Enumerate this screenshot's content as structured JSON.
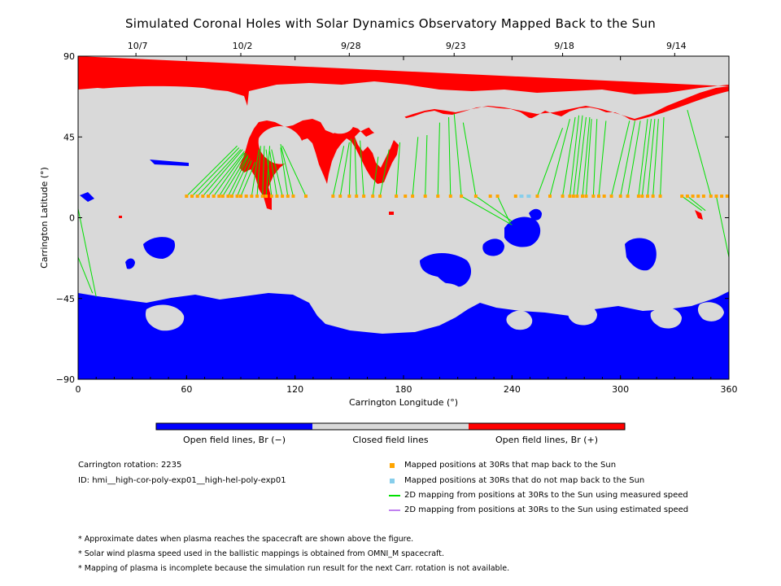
{
  "chart_data": {
    "type": "map",
    "title": "Simulated Coronal Holes with Solar Dynamics Observatory Mapped Back to the Sun",
    "xlabel": "Carrington Longitude (°)",
    "ylabel": "Carrington Latitude (°)",
    "xlim": [
      0,
      360
    ],
    "ylim": [
      -90,
      90
    ],
    "x_ticks": [
      0,
      60,
      120,
      180,
      240,
      300,
      360
    ],
    "y_ticks": [
      -90,
      -45,
      0,
      45,
      90
    ],
    "top_date_ticks": [
      {
        "label": "10/7",
        "x": 32
      },
      {
        "label": "10/2",
        "x": 90
      },
      {
        "label": "9/28",
        "x": 150
      },
      {
        "label": "9/23",
        "x": 208
      },
      {
        "label": "9/18",
        "x": 268
      },
      {
        "label": "9/14",
        "x": 330
      }
    ],
    "colorbar": [
      {
        "label": "Open field lines, Br (−)",
        "color": "#0000ff"
      },
      {
        "label": "Closed field lines",
        "color": "#d9d9d9"
      },
      {
        "label": "Open field lines, Br (+)",
        "color": "#ff0000"
      }
    ],
    "footpoints": [
      {
        "x": 60,
        "y": 12
      },
      {
        "x": 63,
        "y": 12
      },
      {
        "x": 66,
        "y": 12
      },
      {
        "x": 69,
        "y": 12
      },
      {
        "x": 72,
        "y": 12
      },
      {
        "x": 75,
        "y": 12
      },
      {
        "x": 78,
        "y": 12
      },
      {
        "x": 80,
        "y": 12
      },
      {
        "x": 83,
        "y": 12
      },
      {
        "x": 85,
        "y": 12
      },
      {
        "x": 88,
        "y": 12
      },
      {
        "x": 90,
        "y": 12
      },
      {
        "x": 93,
        "y": 12
      },
      {
        "x": 96,
        "y": 12
      },
      {
        "x": 99,
        "y": 12
      },
      {
        "x": 102,
        "y": 12
      },
      {
        "x": 104,
        "y": 12
      },
      {
        "x": 107,
        "y": 12
      },
      {
        "x": 110,
        "y": 12
      },
      {
        "x": 113,
        "y": 12
      },
      {
        "x": 116,
        "y": 12
      },
      {
        "x": 119,
        "y": 12
      },
      {
        "x": 126,
        "y": 12
      },
      {
        "x": 141,
        "y": 12
      },
      {
        "x": 145,
        "y": 12
      },
      {
        "x": 150,
        "y": 12
      },
      {
        "x": 154,
        "y": 12
      },
      {
        "x": 158,
        "y": 12
      },
      {
        "x": 163,
        "y": 12
      },
      {
        "x": 167,
        "y": 12
      },
      {
        "x": 176,
        "y": 12
      },
      {
        "x": 181,
        "y": 12
      },
      {
        "x": 185,
        "y": 12
      },
      {
        "x": 192,
        "y": 12
      },
      {
        "x": 199,
        "y": 12
      },
      {
        "x": 206,
        "y": 12
      },
      {
        "x": 212,
        "y": 12
      },
      {
        "x": 220,
        "y": 12
      },
      {
        "x": 228,
        "y": 12
      },
      {
        "x": 232,
        "y": 12
      },
      {
        "x": 242,
        "y": 12
      },
      {
        "x": 254,
        "y": 12
      },
      {
        "x": 261,
        "y": 12
      },
      {
        "x": 268,
        "y": 12
      },
      {
        "x": 272,
        "y": 12
      },
      {
        "x": 274,
        "y": 12
      },
      {
        "x": 276,
        "y": 12
      },
      {
        "x": 279,
        "y": 12
      },
      {
        "x": 281,
        "y": 12
      },
      {
        "x": 285,
        "y": 12
      },
      {
        "x": 288,
        "y": 12
      },
      {
        "x": 291,
        "y": 12
      },
      {
        "x": 295,
        "y": 12
      },
      {
        "x": 300,
        "y": 12
      },
      {
        "x": 304,
        "y": 12
      },
      {
        "x": 310,
        "y": 12
      },
      {
        "x": 312,
        "y": 12
      },
      {
        "x": 315,
        "y": 12
      },
      {
        "x": 318,
        "y": 12
      },
      {
        "x": 322,
        "y": 12
      },
      {
        "x": 334,
        "y": 12
      },
      {
        "x": 337,
        "y": 12
      },
      {
        "x": 340,
        "y": 12
      },
      {
        "x": 343,
        "y": 12
      },
      {
        "x": 346,
        "y": 12
      },
      {
        "x": 350,
        "y": 12
      },
      {
        "x": 353,
        "y": 12
      },
      {
        "x": 356,
        "y": 12
      },
      {
        "x": 359,
        "y": 12
      }
    ],
    "nonmapped": [
      {
        "x": 245,
        "y": 12
      },
      {
        "x": 249,
        "y": 12
      }
    ],
    "mapping_lines": [
      {
        "x0": 60,
        "y0": 12,
        "x1": 88,
        "y1": 40
      },
      {
        "x0": 63,
        "y0": 12,
        "x1": 89,
        "y1": 39
      },
      {
        "x0": 66,
        "y0": 12,
        "x1": 90,
        "y1": 38
      },
      {
        "x0": 69,
        "y0": 12,
        "x1": 91,
        "y1": 38
      },
      {
        "x0": 72,
        "y0": 12,
        "x1": 92,
        "y1": 37
      },
      {
        "x0": 75,
        "y0": 12,
        "x1": 92,
        "y1": 36
      },
      {
        "x0": 78,
        "y0": 12,
        "x1": 93,
        "y1": 36
      },
      {
        "x0": 80,
        "y0": 12,
        "x1": 94,
        "y1": 35
      },
      {
        "x0": 83,
        "y0": 12,
        "x1": 94,
        "y1": 34
      },
      {
        "x0": 85,
        "y0": 12,
        "x1": 95,
        "y1": 33
      },
      {
        "x0": 88,
        "y0": 12,
        "x1": 96,
        "y1": 32
      },
      {
        "x0": 90,
        "y0": 12,
        "x1": 98,
        "y1": 31
      },
      {
        "x0": 96,
        "y0": 12,
        "x1": 100,
        "y1": 38
      },
      {
        "x0": 99,
        "y0": 12,
        "x1": 101,
        "y1": 40
      },
      {
        "x0": 102,
        "y0": 12,
        "x1": 103,
        "y1": 40
      },
      {
        "x0": 104,
        "y0": 12,
        "x1": 106,
        "y1": 40
      },
      {
        "x0": 107,
        "y0": 12,
        "x1": 104,
        "y1": 38
      },
      {
        "x0": 110,
        "y0": 12,
        "x1": 106,
        "y1": 37
      },
      {
        "x0": 113,
        "y0": 12,
        "x1": 107,
        "y1": 38
      },
      {
        "x0": 116,
        "y0": 12,
        "x1": 112,
        "y1": 39
      },
      {
        "x0": 119,
        "y0": 12,
        "x1": 112,
        "y1": 41
      },
      {
        "x0": 126,
        "y0": 12,
        "x1": 113,
        "y1": 40
      },
      {
        "x0": 141,
        "y0": 12,
        "x1": 147,
        "y1": 40
      },
      {
        "x0": 145,
        "y0": 12,
        "x1": 150,
        "y1": 42
      },
      {
        "x0": 150,
        "y0": 12,
        "x1": 151,
        "y1": 44
      },
      {
        "x0": 154,
        "y0": 12,
        "x1": 153,
        "y1": 44
      },
      {
        "x0": 158,
        "y0": 12,
        "x1": 156,
        "y1": 43
      },
      {
        "x0": 163,
        "y0": 12,
        "x1": 166,
        "y1": 34
      },
      {
        "x0": 167,
        "y0": 12,
        "x1": 172,
        "y1": 38
      },
      {
        "x0": 176,
        "y0": 12,
        "x1": 178,
        "y1": 42
      },
      {
        "x0": 185,
        "y0": 12,
        "x1": 188,
        "y1": 45
      },
      {
        "x0": 192,
        "y0": 12,
        "x1": 193,
        "y1": 46
      },
      {
        "x0": 199,
        "y0": 12,
        "x1": 200,
        "y1": 53
      },
      {
        "x0": 206,
        "y0": 12,
        "x1": 205,
        "y1": 56
      },
      {
        "x0": 212,
        "y0": 12,
        "x1": 208,
        "y1": 58
      },
      {
        "x0": 220,
        "y0": 12,
        "x1": 213,
        "y1": 53
      },
      {
        "x0": 212,
        "y0": 12,
        "x1": 240,
        "y1": -4
      },
      {
        "x0": 220,
        "y0": 12,
        "x1": 240,
        "y1": -2
      },
      {
        "x0": 232,
        "y0": 12,
        "x1": 239,
        "y1": -3
      },
      {
        "x0": 254,
        "y0": 12,
        "x1": 268,
        "y1": 50
      },
      {
        "x0": 261,
        "y0": 12,
        "x1": 272,
        "y1": 55
      },
      {
        "x0": 268,
        "y0": 12,
        "x1": 275,
        "y1": 56
      },
      {
        "x0": 272,
        "y0": 12,
        "x1": 277,
        "y1": 57
      },
      {
        "x0": 274,
        "y0": 12,
        "x1": 279,
        "y1": 57
      },
      {
        "x0": 276,
        "y0": 12,
        "x1": 281,
        "y1": 56
      },
      {
        "x0": 279,
        "y0": 12,
        "x1": 283,
        "y1": 56
      },
      {
        "x0": 281,
        "y0": 12,
        "x1": 284,
        "y1": 55
      },
      {
        "x0": 285,
        "y0": 12,
        "x1": 287,
        "y1": 55
      },
      {
        "x0": 288,
        "y0": 12,
        "x1": 292,
        "y1": 54
      },
      {
        "x0": 295,
        "y0": 12,
        "x1": 305,
        "y1": 54
      },
      {
        "x0": 300,
        "y0": 12,
        "x1": 308,
        "y1": 54
      },
      {
        "x0": 304,
        "y0": 12,
        "x1": 311,
        "y1": 54
      },
      {
        "x0": 310,
        "y0": 12,
        "x1": 315,
        "y1": 55
      },
      {
        "x0": 312,
        "y0": 12,
        "x1": 317,
        "y1": 55
      },
      {
        "x0": 315,
        "y0": 12,
        "x1": 319,
        "y1": 55
      },
      {
        "x0": 318,
        "y0": 12,
        "x1": 321,
        "y1": 55
      },
      {
        "x0": 322,
        "y0": 12,
        "x1": 324,
        "y1": 56
      },
      {
        "x0": 350,
        "y0": 12,
        "x1": 337,
        "y1": 60
      },
      {
        "x0": 334,
        "y0": 12,
        "x1": 345,
        "y1": 4
      },
      {
        "x0": 337,
        "y0": 12,
        "x1": 347,
        "y1": 4
      },
      {
        "x0": 353,
        "y0": 12,
        "x1": 360,
        "y1": -22
      },
      {
        "x0": 0,
        "y0": -22,
        "x1": 8,
        "y1": -42
      },
      {
        "x0": 0,
        "y0": 5,
        "x1": 10,
        "y1": -44
      }
    ]
  },
  "info": {
    "rotation": "Carrington rotation: 2235",
    "id": "ID: hmi__high-cor-poly-exp01__high-hel-poly-exp01"
  },
  "legend": [
    {
      "label": "Mapped positions at 30Rs that map back to the Sun",
      "color": "#ffa500",
      "kind": "square"
    },
    {
      "label": "Mapped positions at 30Rs that do not map back to the Sun",
      "color": "#87ceeb",
      "kind": "square"
    },
    {
      "label": "2D mapping from positions at 30Rs to the Sun using measured speed",
      "color": "#00e000",
      "kind": "line"
    },
    {
      "label": "2D mapping from positions at 30Rs to the Sun using estimated speed",
      "color": "#c080f0",
      "kind": "line"
    }
  ],
  "notes": [
    "* Approximate dates when plasma reaches the spacecraft are shown above the figure.",
    "* Solar wind plasma speed used in the ballistic mappings is obtained from OMNI_M spacecraft.",
    "* Mapping of plasma is incomplete because the simulation run result for the next Carr. rotation is not available."
  ]
}
